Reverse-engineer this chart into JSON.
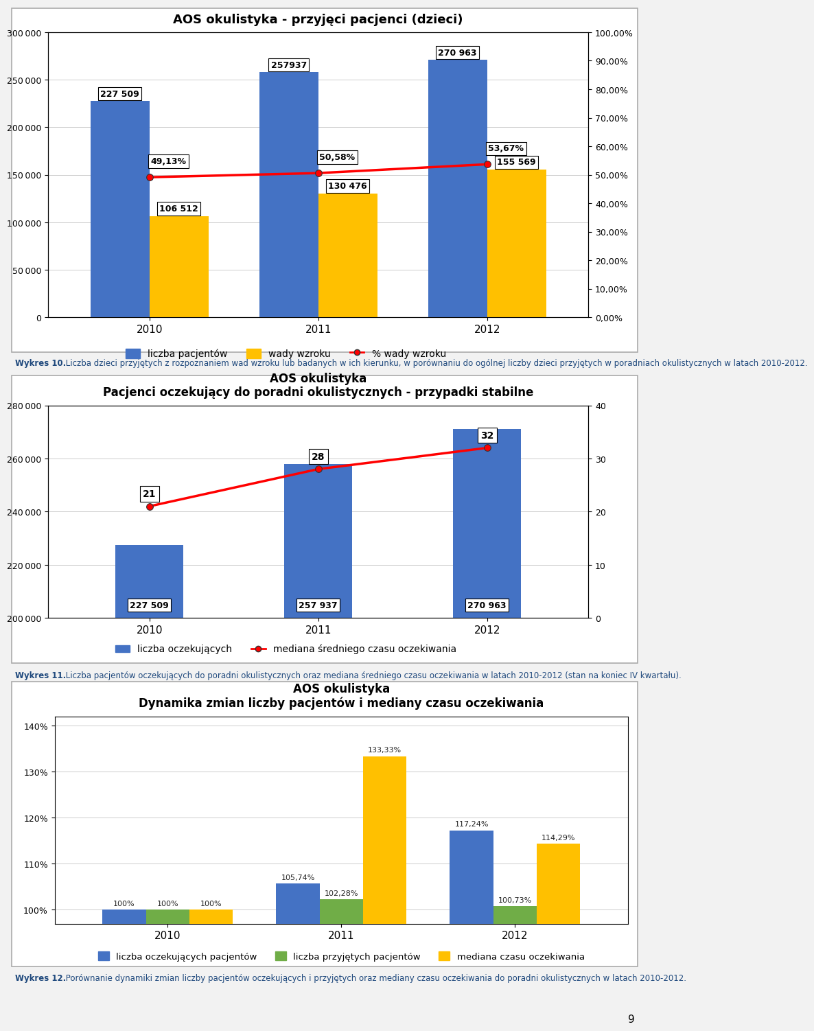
{
  "chart1": {
    "title": "AOS okulistyka - przyjęci pacjenci (dzieci)",
    "years": [
      "2010",
      "2011",
      "2012"
    ],
    "bar1_values": [
      227509,
      257937,
      270963
    ],
    "bar2_values": [
      106512,
      130476,
      155569
    ],
    "line_values": [
      0.4913,
      0.5058,
      0.5367
    ],
    "bar1_labels": [
      "227 509",
      "257937",
      "270 963"
    ],
    "bar2_labels": [
      "106 512",
      "130 476",
      "155 569"
    ],
    "line_labels": [
      "49,13%",
      "50,58%",
      "53,67%"
    ],
    "bar1_color": "#4472C4",
    "bar2_color": "#FFC000",
    "line_color": "#FF0000",
    "ylim_left": [
      0,
      300000
    ],
    "ylim_right": [
      0,
      1.0
    ],
    "yticks_left": [
      0,
      50000,
      100000,
      150000,
      200000,
      250000,
      300000
    ],
    "yticks_right": [
      0.0,
      0.1,
      0.2,
      0.3,
      0.4,
      0.5,
      0.6,
      0.7,
      0.8,
      0.9,
      1.0
    ],
    "legend": [
      "liczba pacjentów",
      "wady wzroku",
      "% wady wzroku"
    ]
  },
  "caption1_bold": "Wykres 10.",
  "caption1_rest": " Liczba dzieci przyjętych z rozpoznaniem wad wzroku lub badanych w ich kierunku, w porównaniu do ogólnej liczby dzieci przyjętych w poradniach okulistycznych w latach 2010-2012.",
  "chart2": {
    "title1": "AOS okulistyka",
    "title2": "Pacjenci oczekujący do poradni okulistycznych - przypadki stabilne",
    "years": [
      "2010",
      "2011",
      "2012"
    ],
    "bar_values": [
      227509,
      257937,
      270963
    ],
    "bar_labels": [
      "227 509",
      "257 937",
      "270 963"
    ],
    "line_values": [
      21,
      28,
      32
    ],
    "bar_color": "#4472C4",
    "line_color": "#FF0000",
    "ylim_left": [
      200000,
      280000
    ],
    "ylim_right": [
      0,
      40
    ],
    "yticks_left": [
      200000,
      220000,
      240000,
      260000,
      280000
    ],
    "yticks_right": [
      0,
      10,
      20,
      30,
      40
    ],
    "legend": [
      "liczba oczekujących",
      "mediana średniego czasu oczekiwania"
    ]
  },
  "caption2_bold": "Wykres 11.",
  "caption2_rest": " Liczba pacjentów oczekujących do poradni okulistycznych oraz mediana średniego czasu oczekiwania w latach 2010-2012 (stan na koniec IV kwartału).",
  "chart3": {
    "title1": "AOS okulistyka",
    "title2": "Dynamika zmian liczby pacjentów i mediany czasu oczekiwania",
    "years": [
      "2010",
      "2011",
      "2012"
    ],
    "series1": [
      1.0,
      1.0574,
      1.1724
    ],
    "series2": [
      1.0,
      1.0228,
      1.0073
    ],
    "series3": [
      1.0,
      1.3333,
      1.1429
    ],
    "labels1": [
      "100%",
      "105,74%",
      "117,24%"
    ],
    "labels2": [
      "100%",
      "102,28%",
      "100,73%"
    ],
    "labels3": [
      "100%",
      "133,33%",
      "114,29%"
    ],
    "color1": "#4472C4",
    "color2": "#70AD47",
    "color3": "#FFC000",
    "ylim": [
      0.97,
      1.42
    ],
    "yticks": [
      1.0,
      1.1,
      1.2,
      1.3,
      1.4
    ],
    "ytick_labels": [
      "100%",
      "110%",
      "120%",
      "130%",
      "140%"
    ],
    "legend": [
      "liczba oczekujących pacjentów",
      "liczba przyjętych pacjentów",
      "mediana czasu oczekiwania"
    ]
  },
  "caption3_bold": "Wykres 12.",
  "caption3_rest": " Porównanie dynamiki zmian liczby pacjentów oczekujących i przyjętych oraz mediany czasu oczekiwania do poradni okulistycznych w latach 2010-2012.",
  "page_number": "9",
  "bg_color": "#F2F2F2"
}
